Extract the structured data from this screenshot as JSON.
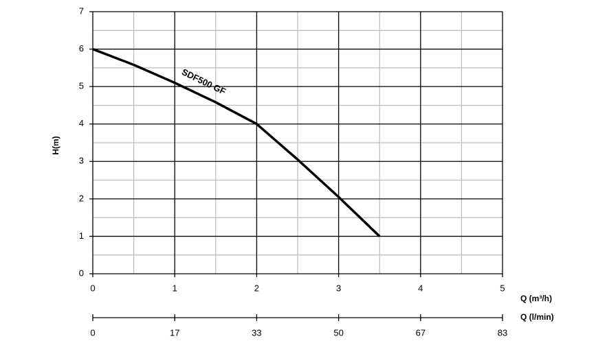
{
  "chart_data": {
    "type": "line",
    "x": [
      0,
      0.5,
      1,
      1.5,
      2,
      2.5,
      3,
      3.5
    ],
    "series": [
      {
        "name": "SDF500 GF",
        "color": "#000000",
        "values": [
          6,
          5.58,
          5.1,
          4.58,
          4,
          3.05,
          2.05,
          1
        ]
      }
    ],
    "xlabel": "Q (m³/h)",
    "ylabel": "H(m)",
    "x2label": "Q (l/min)",
    "xlim": [
      0,
      5
    ],
    "xticks": [
      0,
      1,
      2,
      3,
      4,
      5
    ],
    "ylim": [
      0,
      7
    ],
    "yticks": [
      0,
      1,
      2,
      3,
      4,
      5,
      6,
      7
    ],
    "x_minor_ticks": [
      0.5,
      1.5,
      2.5,
      3.5,
      4.5
    ],
    "y_minor_ticks": [
      0.5,
      1.5,
      2.5,
      3.5,
      4.5,
      5.5,
      6.5
    ],
    "x2lim": [
      0,
      83.33
    ],
    "x2ticks": [
      0,
      {
        "value": 16.67,
        "label": "17"
      },
      {
        "value": 33.33,
        "label": "33"
      },
      50,
      {
        "value": 66.67,
        "label": "67"
      },
      {
        "value": 83.33,
        "label": "83"
      }
    ],
    "grid": true
  }
}
